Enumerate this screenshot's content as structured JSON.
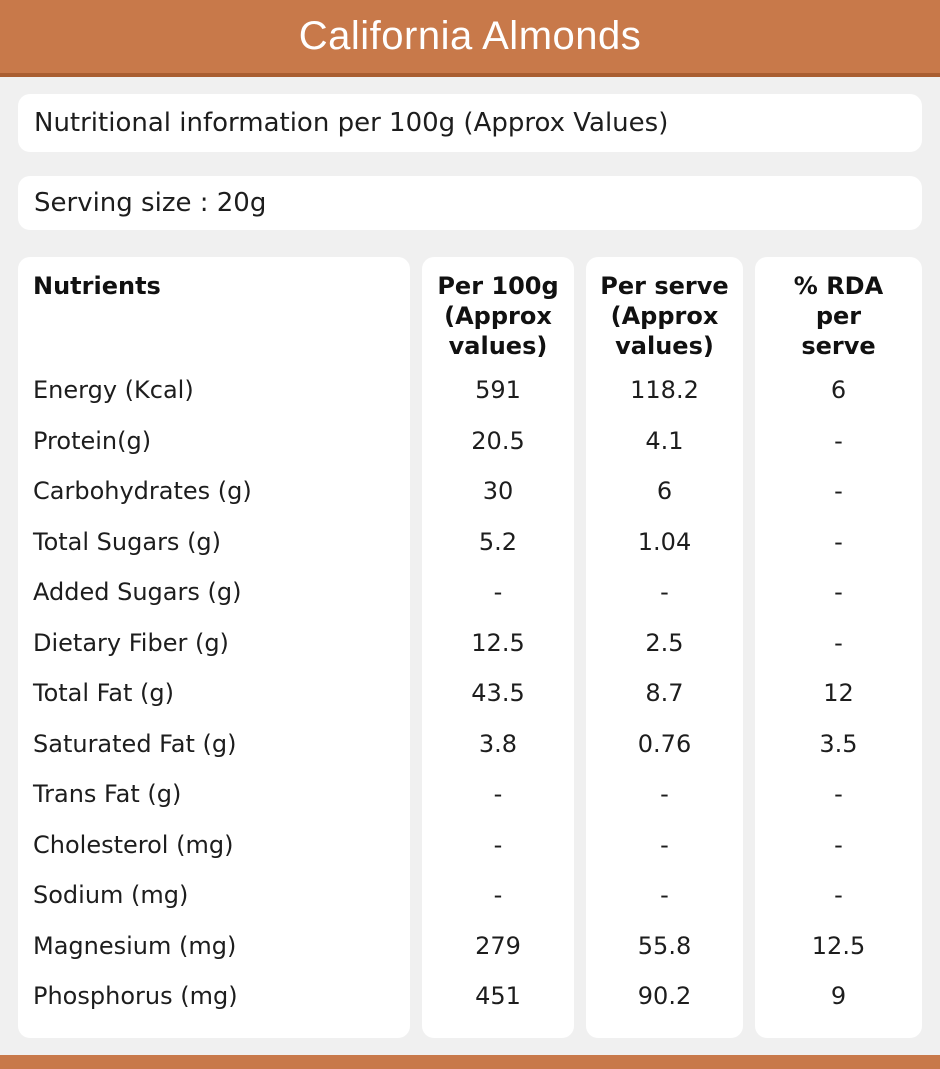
{
  "header": {
    "title": "California Almonds"
  },
  "info_bar": {
    "text": "Nutritional information per 100g (Approx Values)"
  },
  "serving_bar": {
    "text": "Serving size : 20g"
  },
  "table": {
    "columns": [
      {
        "header": "Nutrients"
      },
      {
        "header": "Per 100g\n(Approx\nvalues)"
      },
      {
        "header": "Per serve\n(Approx\nvalues)"
      },
      {
        "header": "% RDA\nper\nserve"
      }
    ],
    "rows": [
      {
        "label": "Energy (Kcal)",
        "per_100g": "591",
        "per_serve": "118.2",
        "rda": "6"
      },
      {
        "label": "Protein(g)",
        "per_100g": "20.5",
        "per_serve": "4.1",
        "rda": "-"
      },
      {
        "label": "Carbohydrates (g)",
        "per_100g": "30",
        "per_serve": "6",
        "rda": "-"
      },
      {
        "label": "Total Sugars (g)",
        "per_100g": "5.2",
        "per_serve": "1.04",
        "rda": "-"
      },
      {
        "label": "Added Sugars (g)",
        "per_100g": "-",
        "per_serve": "-",
        "rda": "-"
      },
      {
        "label": "Dietary Fiber (g)",
        "per_100g": "12.5",
        "per_serve": "2.5",
        "rda": "-"
      },
      {
        "label": "Total Fat (g)",
        "per_100g": "43.5",
        "per_serve": "8.7",
        "rda": "12"
      },
      {
        "label": "Saturated Fat (g)",
        "per_100g": "3.8",
        "per_serve": "0.76",
        "rda": "3.5"
      },
      {
        "label": "Trans Fat (g)",
        "per_100g": "-",
        "per_serve": "-",
        "rda": "-"
      },
      {
        "label": "Cholesterol (mg)",
        "per_100g": "-",
        "per_serve": "-",
        "rda": "-"
      },
      {
        "label": "Sodium (mg)",
        "per_100g": "-",
        "per_serve": "-",
        "rda": "-"
      },
      {
        "label": "Magnesium (mg)",
        "per_100g": "279",
        "per_serve": "55.8",
        "rda": "12.5"
      },
      {
        "label": "Phosphorus (mg)",
        "per_100g": "451",
        "per_serve": "90.2",
        "rda": "9"
      }
    ]
  },
  "colors": {
    "accent": "#C8794A",
    "accent_dark": "#A95E31",
    "background": "#F0F0F0",
    "panel": "#FFFFFF",
    "text": "#1D1D1D"
  }
}
